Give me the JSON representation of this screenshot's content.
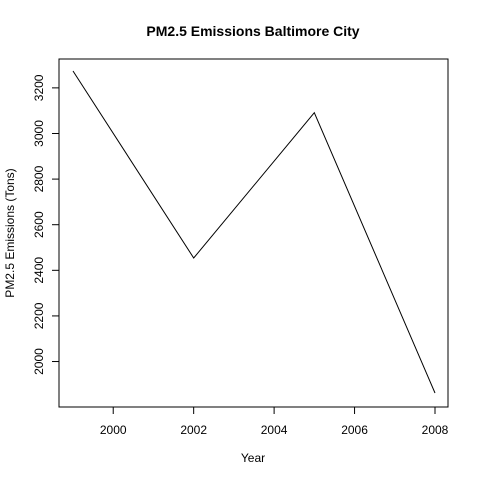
{
  "chart_data": {
    "type": "line",
    "title": "PM2.5 Emissions Baltimore City",
    "xlabel": "Year",
    "ylabel": "PM2.5 Emissions (Tons)",
    "x": [
      1999,
      2002,
      2005,
      2008
    ],
    "series": [
      {
        "values": [
          3274,
          2454,
          3091,
          1862
        ],
        "color": "#000000"
      }
    ],
    "xlim": [
      1999,
      2008
    ],
    "ylim": [
      1862,
      3274
    ],
    "xticks": [
      2000,
      2002,
      2004,
      2006,
      2008
    ],
    "yticks": [
      2000,
      2200,
      2400,
      2600,
      2800,
      3000,
      3200
    ],
    "xtick_labels": [
      "2000",
      "2002",
      "2004",
      "2006",
      "2008"
    ],
    "ytick_labels": [
      "2000",
      "2200",
      "2400",
      "2600",
      "2800",
      "3000",
      "3200"
    ],
    "grid": false,
    "legend": "none"
  }
}
